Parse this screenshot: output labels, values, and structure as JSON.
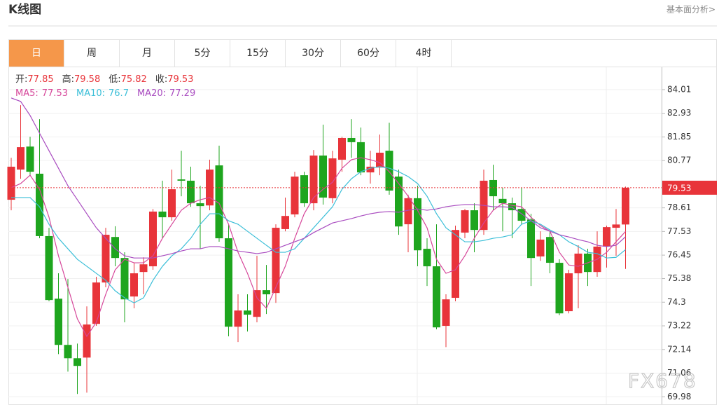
{
  "header": {
    "title": "K线图",
    "link": "基本面分析>"
  },
  "tabs": [
    "日",
    "周",
    "月",
    "5分",
    "15分",
    "30分",
    "60分",
    "4时"
  ],
  "active_tab": 0,
  "watermark": "FX678",
  "chart_data": {
    "type": "candlestick",
    "up_color": "#e8343a",
    "down_color": "#1ea51e",
    "ylim": [
      69.7,
      85.0
    ],
    "yticks": [
      84.01,
      82.93,
      81.85,
      80.77,
      78.61,
      77.53,
      76.45,
      75.38,
      74.3,
      73.22,
      72.14,
      71.06,
      69.98
    ],
    "ohlc_labels": [
      "开:",
      "高:",
      "低:",
      "收:"
    ],
    "last_price_line": true,
    "open": [
      78.98,
      80.36,
      81.41,
      80.17,
      77.32,
      74.46,
      72.35,
      71.74,
      71.77,
      73.31,
      75.2,
      77.28,
      76.32,
      74.56,
      75.68,
      75.94,
      78.44,
      78.18,
      79.91,
      79.85,
      78.82,
      78.72,
      80.55,
      77.22,
      73.18,
      73.92,
      73.63,
      74.85,
      74.72,
      77.64,
      78.31,
      80.1,
      78.82,
      81.0,
      79.05,
      80.81,
      81.8,
      81.61,
      80.23,
      80.45,
      81.22,
      80.04,
      77.86,
      79.05,
      76.74,
      75.94,
      73.22,
      74.5,
      77.48,
      78.5,
      77.6,
      79.88,
      79.02,
      78.82,
      78.56,
      78.08,
      76.39,
      77.28,
      76.1,
      73.89,
      75.62,
      76.52,
      75.68,
      76.84,
      77.7,
      77.85
    ],
    "high": [
      80.9,
      83.3,
      81.86,
      82.66,
      77.7,
      75.62,
      75.36,
      72.41,
      74.11,
      75.46,
      77.7,
      77.77,
      76.58,
      76.1,
      76.35,
      78.56,
      79.85,
      80.36,
      81.22,
      80.49,
      79.62,
      80.81,
      81.45,
      77.86,
      74.66,
      74.66,
      76.42,
      76.0,
      77.86,
      79.08,
      80.26,
      80.26,
      81.25,
      82.41,
      81.22,
      81.86,
      82.66,
      82.28,
      81.22,
      81.96,
      82.5,
      80.36,
      79.21,
      79.62,
      77.22,
      77.86,
      74.66,
      77.8,
      78.56,
      78.82,
      80.36,
      80.58,
      79.53,
      79.08,
      79.53,
      78.34,
      77.54,
      77.54,
      76.26,
      75.78,
      76.9,
      76.74,
      77.54,
      77.8,
      78.56,
      79.58
    ],
    "low": [
      78.5,
      79.94,
      80.1,
      77.22,
      74.34,
      71.93,
      71.13,
      70.11,
      70.17,
      73.22,
      74.98,
      75.94,
      73.38,
      74.02,
      74.66,
      75.78,
      77.22,
      78.02,
      79.14,
      78.66,
      76.74,
      78.5,
      77.06,
      72.74,
      72.48,
      72.96,
      73.38,
      73.76,
      74.27,
      77.54,
      78.18,
      78.66,
      78.5,
      78.76,
      78.82,
      80.26,
      80.9,
      80.1,
      79.72,
      80.1,
      79.21,
      77.38,
      76.58,
      75.94,
      75.04,
      73.06,
      72.25,
      74.34,
      77.22,
      76.58,
      77.38,
      78.5,
      77.54,
      77.22,
      77.86,
      75.04,
      76.19,
      75.62,
      73.7,
      73.79,
      74.02,
      75.04,
      75.46,
      75.88,
      76.42,
      75.82
    ],
    "close": [
      80.49,
      81.38,
      80.26,
      77.32,
      74.4,
      72.35,
      71.74,
      71.39,
      73.28,
      75.2,
      77.38,
      76.32,
      74.43,
      75.62,
      76.03,
      78.44,
      78.18,
      79.46,
      79.85,
      78.82,
      78.69,
      80.36,
      77.22,
      73.18,
      73.92,
      73.73,
      74.85,
      74.66,
      77.7,
      78.24,
      80.04,
      78.82,
      81.0,
      79.08,
      80.87,
      81.8,
      81.61,
      80.23,
      80.49,
      81.13,
      79.4,
      77.76,
      79.05,
      76.67,
      75.94,
      73.15,
      74.43,
      77.6,
      78.5,
      77.6,
      79.85,
      79.14,
      78.82,
      78.5,
      78.02,
      76.32,
      77.16,
      76.1,
      73.79,
      75.62,
      76.52,
      75.68,
      76.84,
      77.73,
      77.85,
      79.53
    ],
    "series": [
      {
        "name": "MA5:",
        "color": "#d6479a",
        "values": [
          79.53,
          79.72,
          80.1,
          79.46,
          78.18,
          76.42,
          74.98,
          73.54,
          72.74,
          73.38,
          74.66,
          75.78,
          76.26,
          76.1,
          76.1,
          76.42,
          77.22,
          77.86,
          78.5,
          78.82,
          78.98,
          79.08,
          78.82,
          77.86,
          76.58,
          75.62,
          74.5,
          74.02,
          74.98,
          75.94,
          77.22,
          78.34,
          79.08,
          79.46,
          79.78,
          80.42,
          80.81,
          80.9,
          80.81,
          80.68,
          80.26,
          79.72,
          79.14,
          78.5,
          77.7,
          76.26,
          75.62,
          75.78,
          76.42,
          77.22,
          77.92,
          78.5,
          78.82,
          78.72,
          78.66,
          78.18,
          77.8,
          77.54,
          76.58,
          76.0,
          75.94,
          76.1,
          76.26,
          76.58,
          77.06,
          77.53
        ]
      },
      {
        "name": "MA10:",
        "color": "#3cbfd8",
        "values": [
          79.08,
          79.08,
          79.08,
          78.66,
          77.86,
          77.22,
          76.74,
          76.26,
          75.94,
          75.62,
          75.3,
          74.82,
          74.5,
          74.27,
          74.5,
          75.3,
          75.94,
          76.42,
          76.74,
          77.22,
          77.86,
          78.34,
          78.34,
          78.02,
          77.86,
          77.54,
          77.22,
          76.9,
          76.58,
          76.58,
          76.74,
          77.22,
          77.7,
          78.18,
          78.66,
          79.46,
          79.94,
          80.26,
          80.42,
          80.49,
          80.42,
          80.26,
          80.04,
          79.72,
          79.14,
          78.34,
          77.7,
          77.38,
          77.06,
          77.06,
          77.12,
          77.22,
          77.28,
          77.38,
          77.86,
          78.02,
          77.86,
          77.6,
          77.38,
          77.06,
          76.84,
          76.58,
          76.52,
          76.32,
          76.35,
          76.7
        ]
      },
      {
        "name": "MA20:",
        "color": "#a94cc0",
        "values": [
          83.63,
          83.47,
          82.83,
          82.02,
          81.22,
          80.42,
          79.62,
          78.98,
          78.34,
          77.7,
          77.22,
          76.74,
          76.42,
          76.32,
          76.32,
          76.32,
          76.42,
          76.52,
          76.64,
          76.74,
          76.74,
          76.84,
          76.84,
          76.74,
          76.64,
          76.58,
          76.52,
          76.58,
          76.74,
          76.9,
          77.06,
          77.22,
          77.48,
          77.7,
          77.92,
          78.02,
          78.12,
          78.24,
          78.34,
          78.41,
          78.44,
          78.41,
          78.5,
          78.56,
          78.5,
          78.56,
          78.66,
          78.72,
          78.76,
          78.76,
          78.72,
          78.66,
          78.66,
          78.63,
          78.34,
          78.02,
          77.7,
          77.54,
          77.38,
          77.28,
          77.16,
          77.06,
          76.9,
          76.84,
          76.9,
          77.29
        ]
      }
    ]
  }
}
